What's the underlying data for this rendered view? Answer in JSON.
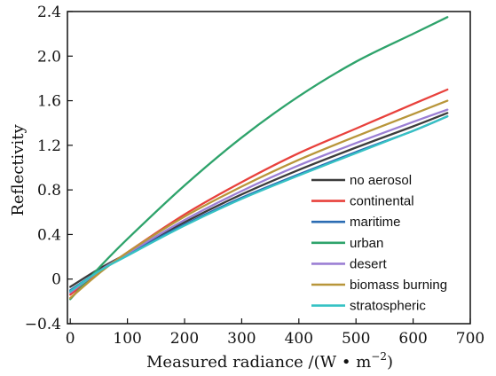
{
  "chart_data": {
    "type": "line",
    "xlabel": "Measured radiance /(W • m",
    "xlabel_sup": "−2",
    "xlabel_suffix": ")",
    "ylabel": "Reflectivity",
    "xlim": [
      -5,
      700
    ],
    "ylim": [
      -0.4,
      2.4
    ],
    "xticks": [
      0,
      100,
      200,
      300,
      400,
      500,
      600,
      700
    ],
    "yticks": [
      -0.4,
      0,
      0.4,
      0.8,
      1.2,
      1.6,
      2.0,
      2.4
    ],
    "ytick_labels": [
      "−0.4",
      "0",
      "0.4",
      "0.8",
      "1.2",
      "1.6",
      "2.0",
      "2.4"
    ],
    "legend_position": "bottom-right",
    "x": [
      0,
      50,
      100,
      200,
      300,
      400,
      500,
      600,
      660
    ],
    "series": [
      {
        "name": "no aerosol",
        "color": "#3c3c3c",
        "values": [
          -0.07,
          0.09,
          0.23,
          0.51,
          0.76,
          0.98,
          1.18,
          1.37,
          1.49
        ]
      },
      {
        "name": "continental",
        "color": "#e8413c",
        "values": [
          -0.14,
          0.06,
          0.24,
          0.58,
          0.87,
          1.13,
          1.35,
          1.57,
          1.7
        ]
      },
      {
        "name": "maritime",
        "color": "#2b6cb3",
        "values": [
          -0.1,
          0.07,
          0.22,
          0.49,
          0.73,
          0.94,
          1.14,
          1.33,
          1.46
        ]
      },
      {
        "name": "urban",
        "color": "#2ea36b",
        "values": [
          -0.18,
          0.1,
          0.36,
          0.84,
          1.27,
          1.64,
          1.95,
          2.2,
          2.35
        ]
      },
      {
        "name": "desert",
        "color": "#9b7fd4",
        "values": [
          -0.12,
          0.07,
          0.23,
          0.53,
          0.79,
          1.02,
          1.22,
          1.41,
          1.52
        ]
      },
      {
        "name": "biomass burning",
        "color": "#b8963a",
        "values": [
          -0.17,
          0.05,
          0.24,
          0.56,
          0.83,
          1.07,
          1.28,
          1.48,
          1.6
        ]
      },
      {
        "name": "stratospheric",
        "color": "#36c2c4",
        "values": [
          -0.11,
          0.07,
          0.21,
          0.48,
          0.72,
          0.93,
          1.13,
          1.33,
          1.46
        ]
      }
    ]
  }
}
